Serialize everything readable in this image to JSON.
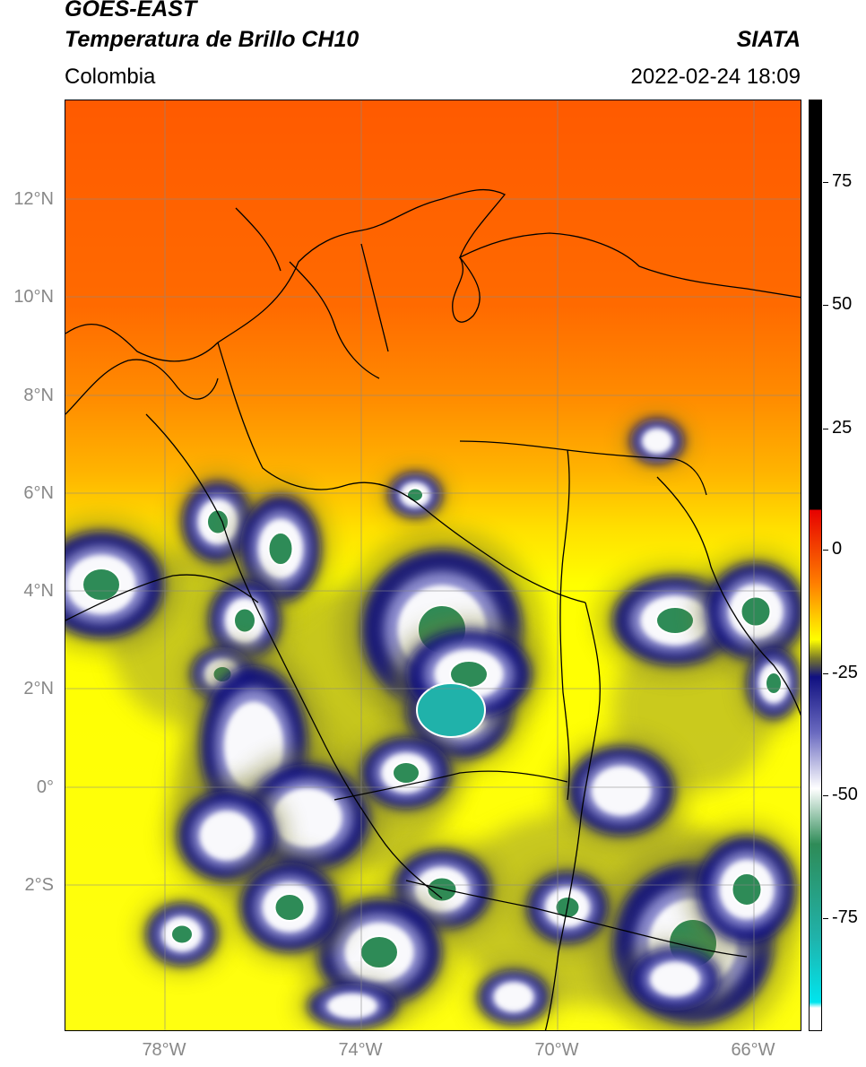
{
  "header": {
    "satellite": "GOES-EAST",
    "product": "Temperatura de Brillo CH10",
    "region": "Colombia",
    "agency": "SIATA",
    "datetime": "2022-02-24 18:09"
  },
  "axes": {
    "lat_labels": [
      "12°N",
      "10°N",
      "8°N",
      "6°N",
      "4°N",
      "2°N",
      "0°",
      "2°S"
    ],
    "lon_labels": [
      "78°W",
      "74°W",
      "70°W",
      "66°W"
    ]
  },
  "colorbar": {
    "ticks": [
      "75",
      "50",
      "25",
      "0",
      "-25",
      "-50",
      "-75"
    ],
    "colors": {
      "black": "#000000",
      "red": "#e60000",
      "orange": "#ff7f00",
      "yellow": "#ffff00",
      "olive": "#7a7a2a",
      "navy": "#101080",
      "white": "#ffffff",
      "green": "#2e8b57",
      "teal": "#20b2aa",
      "cyan": "#00e5ee"
    }
  }
}
